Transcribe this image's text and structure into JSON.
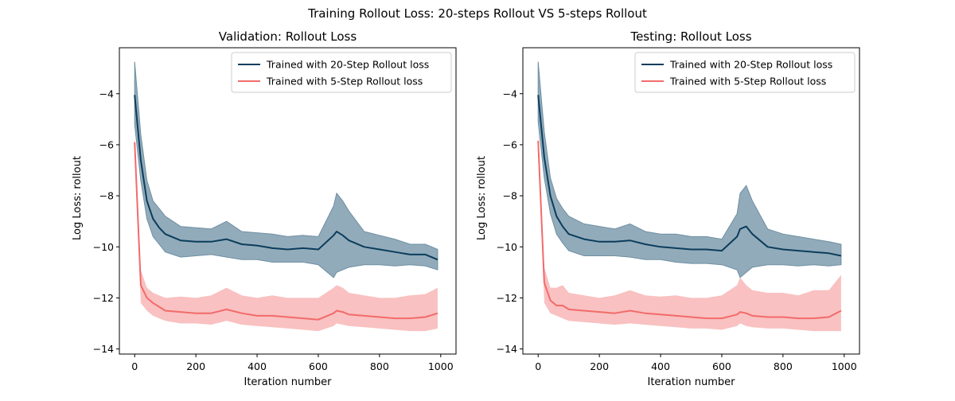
{
  "figure": {
    "title": "Training Rollout Loss: 20-steps Rollout VS 5-steps Rollout"
  },
  "colors": {
    "series_20": "#0b3d5c",
    "series_5": "#f26b6b",
    "band_20": "#6e8fa3",
    "band_5": "#f7a6a6",
    "frame": "#000000"
  },
  "chart_data": [
    {
      "type": "line",
      "title": "Validation: Rollout Loss",
      "xlabel": "Iteration number",
      "ylabel": "Log Loss: rollout",
      "xlim": [
        -50,
        1050
      ],
      "ylim": [
        -14.2,
        -2.2
      ],
      "xticks": [
        0,
        200,
        400,
        600,
        800,
        1000
      ],
      "xtick_labels": [
        "0",
        "200",
        "400",
        "600",
        "800",
        "1000"
      ],
      "yticks": [
        -14,
        -12,
        -10,
        -8,
        -6,
        -4
      ],
      "ytick_labels": [
        "−14",
        "−12",
        "−10",
        "−8",
        "−6",
        "−4"
      ],
      "legend": {
        "position": "top-right",
        "entries": [
          "Trained with 20-Step Rollout loss",
          "Trained with 5-Step Rollout loss"
        ]
      },
      "x": [
        0,
        20,
        40,
        60,
        80,
        100,
        150,
        200,
        250,
        300,
        350,
        400,
        450,
        500,
        550,
        600,
        650,
        660,
        680,
        700,
        750,
        800,
        850,
        900,
        950,
        990
      ],
      "series": [
        {
          "name": "Trained with 20-Step Rollout loss",
          "values": [
            -4.05,
            -6.6,
            -8.2,
            -8.9,
            -9.25,
            -9.5,
            -9.75,
            -9.8,
            -9.8,
            -9.7,
            -9.9,
            -9.95,
            -10.05,
            -10.1,
            -10.05,
            -10.1,
            -9.55,
            -9.4,
            -9.55,
            -9.75,
            -10.0,
            -10.1,
            -10.2,
            -10.3,
            -10.3,
            -10.5
          ],
          "lower": [
            -5.2,
            -7.4,
            -8.9,
            -9.6,
            -9.9,
            -10.2,
            -10.4,
            -10.35,
            -10.3,
            -10.4,
            -10.5,
            -10.5,
            -10.6,
            -10.6,
            -10.6,
            -10.7,
            -11.2,
            -11.0,
            -10.9,
            -10.8,
            -10.7,
            -10.7,
            -10.75,
            -10.7,
            -10.75,
            -10.9
          ],
          "upper": [
            -2.75,
            -5.6,
            -7.4,
            -8.2,
            -8.5,
            -8.8,
            -9.2,
            -9.25,
            -9.3,
            -9.0,
            -9.4,
            -9.45,
            -9.5,
            -9.6,
            -9.55,
            -9.6,
            -8.4,
            -7.9,
            -8.2,
            -8.6,
            -9.4,
            -9.55,
            -9.7,
            -9.9,
            -9.9,
            -10.1
          ]
        },
        {
          "name": "Trained with 5-Step Rollout loss",
          "values": [
            -5.9,
            -11.5,
            -12.0,
            -12.2,
            -12.35,
            -12.5,
            -12.55,
            -12.6,
            -12.6,
            -12.45,
            -12.6,
            -12.7,
            -12.7,
            -12.75,
            -12.8,
            -12.85,
            -12.6,
            -12.5,
            -12.55,
            -12.65,
            -12.7,
            -12.75,
            -12.8,
            -12.8,
            -12.75,
            -12.6
          ],
          "lower": [
            -6.2,
            -12.2,
            -12.5,
            -12.7,
            -12.8,
            -12.9,
            -13.0,
            -13.0,
            -13.05,
            -12.9,
            -13.05,
            -13.1,
            -13.15,
            -13.2,
            -13.25,
            -13.3,
            -13.1,
            -13.0,
            -13.05,
            -13.1,
            -13.15,
            -13.2,
            -13.25,
            -13.3,
            -13.3,
            -13.2
          ],
          "upper": [
            -5.6,
            -10.9,
            -11.6,
            -11.8,
            -11.9,
            -12.0,
            -11.95,
            -12.0,
            -11.9,
            -11.6,
            -11.9,
            -12.0,
            -11.9,
            -12.0,
            -12.0,
            -12.0,
            -11.6,
            -11.5,
            -11.6,
            -11.8,
            -11.9,
            -12.0,
            -12.0,
            -11.9,
            -11.85,
            -11.6
          ]
        }
      ]
    },
    {
      "type": "line",
      "title": "Testing: Rollout Loss",
      "xlabel": "Iteration number",
      "ylabel": "Log Loss: rollout",
      "xlim": [
        -50,
        1050
      ],
      "ylim": [
        -14.2,
        -2.2
      ],
      "xticks": [
        0,
        200,
        400,
        600,
        800,
        1000
      ],
      "xtick_labels": [
        "0",
        "200",
        "400",
        "600",
        "800",
        "1000"
      ],
      "yticks": [
        -14,
        -12,
        -10,
        -8,
        -6,
        -4
      ],
      "ytick_labels": [
        "−14",
        "−12",
        "−10",
        "−8",
        "−6",
        "−4"
      ],
      "legend": {
        "position": "top-right",
        "entries": [
          "Trained with 20-Step Rollout loss",
          "Trained with 5-Step Rollout loss"
        ]
      },
      "x": [
        0,
        20,
        40,
        60,
        80,
        100,
        150,
        200,
        250,
        300,
        350,
        400,
        450,
        500,
        550,
        600,
        650,
        660,
        680,
        700,
        750,
        800,
        850,
        900,
        950,
        990
      ],
      "series": [
        {
          "name": "Trained with 20-Step Rollout loss",
          "values": [
            -4.05,
            -6.5,
            -8.0,
            -8.8,
            -9.2,
            -9.5,
            -9.7,
            -9.8,
            -9.8,
            -9.75,
            -9.9,
            -10.0,
            -10.05,
            -10.1,
            -10.1,
            -10.15,
            -9.6,
            -9.3,
            -9.2,
            -9.5,
            -10.0,
            -10.1,
            -10.15,
            -10.2,
            -10.25,
            -10.35
          ],
          "lower": [
            -5.1,
            -7.3,
            -8.7,
            -9.5,
            -9.85,
            -10.15,
            -10.35,
            -10.35,
            -10.35,
            -10.4,
            -10.5,
            -10.5,
            -10.6,
            -10.65,
            -10.65,
            -10.7,
            -10.9,
            -11.2,
            -11.0,
            -10.8,
            -10.7,
            -10.7,
            -10.75,
            -10.7,
            -10.75,
            -10.7
          ],
          "upper": [
            -2.75,
            -5.5,
            -7.3,
            -8.1,
            -8.5,
            -8.8,
            -9.1,
            -9.2,
            -9.3,
            -9.1,
            -9.4,
            -9.5,
            -9.5,
            -9.6,
            -9.6,
            -9.7,
            -8.7,
            -7.9,
            -7.6,
            -8.2,
            -9.3,
            -9.5,
            -9.6,
            -9.7,
            -9.8,
            -9.9
          ]
        },
        {
          "name": "Trained with 5-Step Rollout loss",
          "values": [
            -5.85,
            -11.4,
            -12.1,
            -12.3,
            -12.3,
            -12.45,
            -12.5,
            -12.55,
            -12.6,
            -12.5,
            -12.6,
            -12.65,
            -12.7,
            -12.75,
            -12.8,
            -12.8,
            -12.65,
            -12.55,
            -12.6,
            -12.7,
            -12.75,
            -12.75,
            -12.8,
            -12.8,
            -12.75,
            -12.5
          ],
          "lower": [
            -6.2,
            -12.2,
            -12.6,
            -12.7,
            -12.8,
            -12.9,
            -12.95,
            -13.0,
            -13.05,
            -13.0,
            -13.05,
            -13.1,
            -13.15,
            -13.2,
            -13.2,
            -13.25,
            -13.1,
            -13.0,
            -13.1,
            -13.15,
            -13.2,
            -13.2,
            -13.25,
            -13.3,
            -13.3,
            -13.3
          ],
          "upper": [
            -5.5,
            -10.8,
            -11.6,
            -11.6,
            -11.5,
            -11.8,
            -11.9,
            -12.0,
            -11.9,
            -11.7,
            -11.9,
            -11.95,
            -11.9,
            -12.0,
            -12.0,
            -11.9,
            -11.5,
            -11.2,
            -11.5,
            -11.7,
            -11.8,
            -11.8,
            -11.9,
            -11.7,
            -11.7,
            -11.1
          ]
        }
      ]
    }
  ]
}
